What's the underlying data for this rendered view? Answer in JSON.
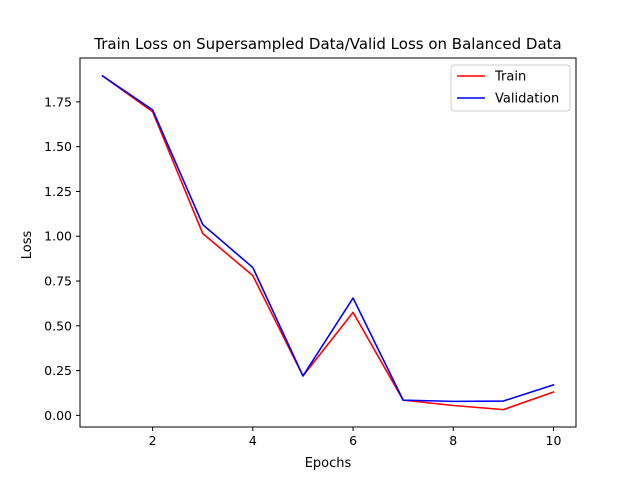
{
  "chart_data": {
    "type": "line",
    "title": "Train Loss on Supersampled Data/Valid Loss on Balanced Data",
    "xlabel": "Epochs",
    "ylabel": "Loss",
    "x": [
      1,
      2,
      3,
      4,
      5,
      6,
      7,
      8,
      9,
      10
    ],
    "xlim": [
      0.55,
      10.45
    ],
    "ylim": [
      -0.065,
      1.995
    ],
    "xticks": [
      2,
      4,
      6,
      8,
      10
    ],
    "xtick_labels": [
      "2",
      "4",
      "6",
      "8",
      "10"
    ],
    "yticks": [
      0,
      0.25,
      0.5,
      0.75,
      1.0,
      1.25,
      1.5,
      1.75
    ],
    "ytick_labels": [
      "0.00",
      "0.25",
      "0.50",
      "0.75",
      "1.00",
      "1.25",
      "1.50",
      "1.75"
    ],
    "grid": false,
    "legend_position": "top-right",
    "series": [
      {
        "name": "Train",
        "color": "#ff0000",
        "values": [
          1.895,
          1.695,
          1.015,
          0.78,
          0.22,
          0.575,
          0.085,
          0.055,
          0.032,
          0.13
        ]
      },
      {
        "name": "Validation",
        "color": "#0000ff",
        "values": [
          1.895,
          1.705,
          1.065,
          0.825,
          0.22,
          0.655,
          0.085,
          0.078,
          0.08,
          0.17
        ]
      }
    ]
  }
}
